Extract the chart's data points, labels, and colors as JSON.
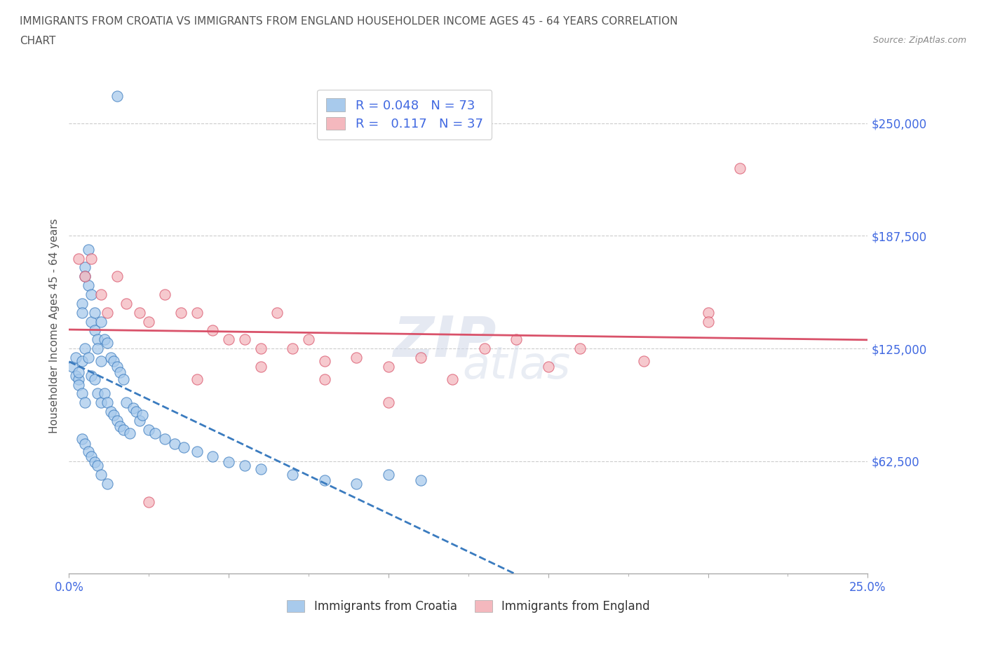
{
  "title_line1": "IMMIGRANTS FROM CROATIA VS IMMIGRANTS FROM ENGLAND HOUSEHOLDER INCOME AGES 45 - 64 YEARS CORRELATION",
  "title_line2": "CHART",
  "source_text": "Source: ZipAtlas.com",
  "ylabel": "Householder Income Ages 45 - 64 years",
  "xlim": [
    0.0,
    0.25
  ],
  "ylim": [
    0,
    275000
  ],
  "yticks": [
    62500,
    125000,
    187500,
    250000
  ],
  "ytick_labels": [
    "$62,500",
    "$125,000",
    "$187,500",
    "$250,000"
  ],
  "croatia_color": "#a8caec",
  "england_color": "#f4b8be",
  "croatia_R": 0.048,
  "croatia_N": 73,
  "england_R": 0.117,
  "england_N": 37,
  "trend_color_croatia": "#3a7bbf",
  "trend_color_england": "#d9526a",
  "watermark_line1": "ZIP",
  "watermark_line2": "atlas",
  "background_color": "#ffffff",
  "grid_color": "#cccccc",
  "axis_label_color": "#4169E1",
  "title_color": "#555555",
  "croatia_x": [
    0.001,
    0.002,
    0.002,
    0.003,
    0.003,
    0.003,
    0.004,
    0.004,
    0.004,
    0.004,
    0.005,
    0.005,
    0.005,
    0.005,
    0.006,
    0.006,
    0.006,
    0.007,
    0.007,
    0.007,
    0.008,
    0.008,
    0.008,
    0.009,
    0.009,
    0.009,
    0.01,
    0.01,
    0.01,
    0.011,
    0.011,
    0.012,
    0.012,
    0.013,
    0.013,
    0.014,
    0.014,
    0.015,
    0.015,
    0.016,
    0.016,
    0.017,
    0.017,
    0.018,
    0.019,
    0.02,
    0.021,
    0.022,
    0.023,
    0.025,
    0.027,
    0.03,
    0.033,
    0.036,
    0.04,
    0.045,
    0.05,
    0.055,
    0.06,
    0.07,
    0.08,
    0.09,
    0.1,
    0.11,
    0.004,
    0.005,
    0.006,
    0.007,
    0.008,
    0.009,
    0.01,
    0.012,
    0.015
  ],
  "croatia_y": [
    115000,
    110000,
    120000,
    108000,
    112000,
    105000,
    150000,
    145000,
    118000,
    100000,
    170000,
    165000,
    125000,
    95000,
    180000,
    160000,
    120000,
    155000,
    140000,
    110000,
    145000,
    135000,
    108000,
    130000,
    125000,
    100000,
    140000,
    118000,
    95000,
    130000,
    100000,
    128000,
    95000,
    120000,
    90000,
    118000,
    88000,
    115000,
    85000,
    112000,
    82000,
    108000,
    80000,
    95000,
    78000,
    92000,
    90000,
    85000,
    88000,
    80000,
    78000,
    75000,
    72000,
    70000,
    68000,
    65000,
    62000,
    60000,
    58000,
    55000,
    52000,
    50000,
    55000,
    52000,
    75000,
    72000,
    68000,
    65000,
    62000,
    60000,
    55000,
    50000,
    265000
  ],
  "england_x": [
    0.003,
    0.005,
    0.007,
    0.01,
    0.012,
    0.015,
    0.018,
    0.022,
    0.025,
    0.03,
    0.035,
    0.04,
    0.045,
    0.05,
    0.055,
    0.06,
    0.065,
    0.07,
    0.075,
    0.08,
    0.09,
    0.1,
    0.11,
    0.12,
    0.13,
    0.14,
    0.15,
    0.16,
    0.18,
    0.2,
    0.21,
    0.025,
    0.04,
    0.06,
    0.08,
    0.1,
    0.2
  ],
  "england_y": [
    175000,
    165000,
    175000,
    155000,
    145000,
    165000,
    150000,
    145000,
    140000,
    155000,
    145000,
    145000,
    135000,
    130000,
    130000,
    125000,
    145000,
    125000,
    130000,
    118000,
    120000,
    115000,
    120000,
    108000,
    125000,
    130000,
    115000,
    125000,
    118000,
    145000,
    225000,
    40000,
    108000,
    115000,
    108000,
    95000,
    140000
  ]
}
